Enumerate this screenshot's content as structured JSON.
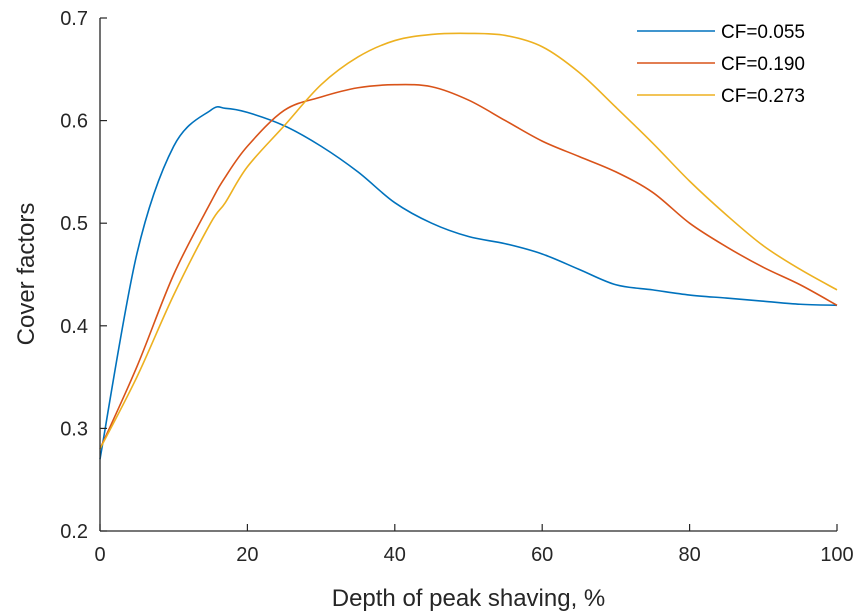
{
  "chart_data": {
    "type": "line",
    "xlabel": "Depth of peak shaving, %",
    "ylabel": "Cover factors",
    "xlim": [
      0,
      100
    ],
    "ylim": [
      0.2,
      0.7
    ],
    "xticks": [
      "0",
      "20",
      "40",
      "60",
      "80",
      "100"
    ],
    "yticks": [
      "0.2",
      "0.3",
      "0.4",
      "0.5",
      "0.6",
      "0.7"
    ],
    "grid": false,
    "legend_position": "top-right",
    "x": [
      0,
      5,
      10,
      15,
      17,
      20,
      25,
      30,
      35,
      40,
      45,
      50,
      55,
      60,
      65,
      70,
      75,
      80,
      85,
      90,
      95,
      100
    ],
    "series": [
      {
        "name": "CF=0.055",
        "color": "#0072BD",
        "values": [
          0.27,
          0.47,
          0.575,
          0.61,
          0.612,
          0.608,
          0.595,
          0.575,
          0.55,
          0.52,
          0.5,
          0.487,
          0.48,
          0.47,
          0.455,
          0.44,
          0.435,
          0.43,
          0.427,
          0.424,
          0.421,
          0.42
        ]
      },
      {
        "name": "CF=0.190",
        "color": "#D95319",
        "values": [
          0.28,
          0.36,
          0.45,
          0.52,
          0.545,
          0.575,
          0.61,
          0.623,
          0.632,
          0.635,
          0.633,
          0.62,
          0.6,
          0.58,
          0.565,
          0.55,
          0.53,
          0.5,
          0.477,
          0.457,
          0.44,
          0.42
        ]
      },
      {
        "name": "CF=0.273",
        "color": "#EDB120",
        "values": [
          0.28,
          0.35,
          0.43,
          0.5,
          0.52,
          0.555,
          0.595,
          0.635,
          0.662,
          0.678,
          0.684,
          0.685,
          0.683,
          0.672,
          0.647,
          0.613,
          0.578,
          0.541,
          0.508,
          0.478,
          0.455,
          0.435
        ]
      }
    ]
  }
}
